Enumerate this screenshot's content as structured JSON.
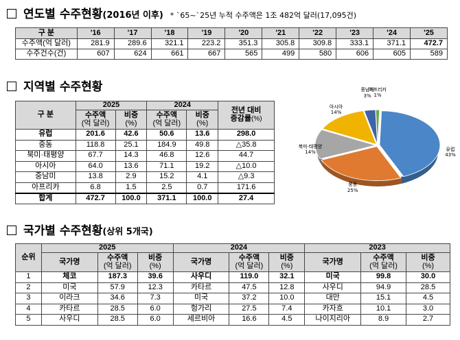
{
  "section1": {
    "title": "연도별 수주현황",
    "subtitle": "(2016년 이후)",
    "note": "* `65~`25년 누적 수주액은 1조 482억 달러(17,095건)",
    "header_label": "구  분",
    "years": [
      "'16",
      "'17",
      "'18",
      "'19",
      "'20",
      "'21",
      "'22",
      "'23",
      "'24",
      "'25"
    ],
    "rows": [
      {
        "label": "수주액(억 달러)",
        "values": [
          "281.9",
          "289.6",
          "321.1",
          "223.2",
          "351.3",
          "305.8",
          "309.8",
          "333.1",
          "371.1",
          "472.7"
        ]
      },
      {
        "label": "수주건수(건)",
        "values": [
          "607",
          "624",
          "661",
          "667",
          "565",
          "499",
          "580",
          "606",
          "605",
          "589"
        ]
      }
    ]
  },
  "section2": {
    "title": "지역별 수주현황",
    "header": {
      "label": "구  분",
      "year1": "2025",
      "year2": "2024",
      "amount": "수주액",
      "amount_unit": "(억 달러)",
      "share": "비중",
      "share_unit": "(%)",
      "change": "전년 대비",
      "change2": "증감률",
      "change_unit": "(%)"
    },
    "rows": [
      {
        "region": "유럽",
        "a2025": "201.6",
        "s2025": "42.6",
        "a2024": "50.6",
        "s2024": "13.6",
        "change": "298.0"
      },
      {
        "region": "중동",
        "a2025": "118.8",
        "s2025": "25.1",
        "a2024": "184.9",
        "s2024": "49.8",
        "change": "△35.8"
      },
      {
        "region": "북미·태평양",
        "a2025": "67.7",
        "s2025": "14.3",
        "a2024": "46.8",
        "s2024": "12.6",
        "change": "44.7"
      },
      {
        "region": "아시아",
        "a2025": "64.0",
        "s2025": "13.6",
        "a2024": "71.1",
        "s2024": "19.2",
        "change": "△10.0"
      },
      {
        "region": "중남미",
        "a2025": "13.8",
        "s2025": "2.9",
        "a2024": "15.2",
        "s2024": "4.1",
        "change": "△9.3"
      },
      {
        "region": "아프리카",
        "a2025": "6.8",
        "s2025": "1.5",
        "a2024": "2.5",
        "s2024": "0.7",
        "change": "171.6"
      }
    ],
    "total": {
      "region": "합계",
      "a2025": "472.7",
      "s2025": "100.0",
      "a2024": "371.1",
      "s2024": "100.0",
      "change": "27.4"
    }
  },
  "chart_data": {
    "type": "pie",
    "slices": [
      {
        "label": "유럽",
        "pct_label": "43%",
        "value": 43,
        "color": "#4a86c8"
      },
      {
        "label": "중동",
        "pct_label": "25%",
        "value": 25,
        "color": "#e07a30"
      },
      {
        "label": "북미·태평양",
        "pct_label": "14%",
        "value": 14,
        "color": "#a6a6a6"
      },
      {
        "label": "아시아",
        "pct_label": "14%",
        "value": 14,
        "color": "#f0b400"
      },
      {
        "label": "중남미",
        "pct_label": "3%",
        "value": 3,
        "color": "#3f62a8"
      },
      {
        "label": "아프리카",
        "pct_label": "1%",
        "value": 1,
        "color": "#6aa84f"
      }
    ]
  },
  "section3": {
    "title": "국가별 수주현황",
    "subtitle": "(상위 5개국)",
    "header": {
      "rank": "순위",
      "years": [
        "2025",
        "2024",
        "2023"
      ],
      "country": "국가명",
      "amount": "수주액",
      "amount_unit": "(억 달러)",
      "share": "비중",
      "share_unit": "(%)"
    },
    "rows": [
      {
        "rank": "1",
        "c25": "체코",
        "a25": "187.3",
        "s25": "39.6",
        "c24": "사우디",
        "a24": "119.0",
        "s24": "32.1",
        "c23": "미국",
        "a23": "99.8",
        "s23": "30.0"
      },
      {
        "rank": "2",
        "c25": "미국",
        "a25": "57.9",
        "s25": "12.3",
        "c24": "카타르",
        "a24": "47.5",
        "s24": "12.8",
        "c23": "사우디",
        "a23": "94.9",
        "s23": "28.5"
      },
      {
        "rank": "3",
        "c25": "이라크",
        "a25": "34.6",
        "s25": "7.3",
        "c24": "미국",
        "a24": "37.2",
        "s24": "10.0",
        "c23": "대만",
        "a23": "15.1",
        "s23": "4.5"
      },
      {
        "rank": "4",
        "c25": "카타르",
        "a25": "28.5",
        "s25": "6.0",
        "c24": "헝가리",
        "a24": "27.5",
        "s24": "7.4",
        "c23": "카자흐",
        "a23": "10.1",
        "s23": "3.0"
      },
      {
        "rank": "5",
        "c25": "사우디",
        "a25": "28.5",
        "s25": "6.0",
        "c24": "세르비아",
        "a24": "16.6",
        "s24": "4.5",
        "c23": "나이지리아",
        "a23": "8.9",
        "s23": "2.7"
      }
    ]
  }
}
